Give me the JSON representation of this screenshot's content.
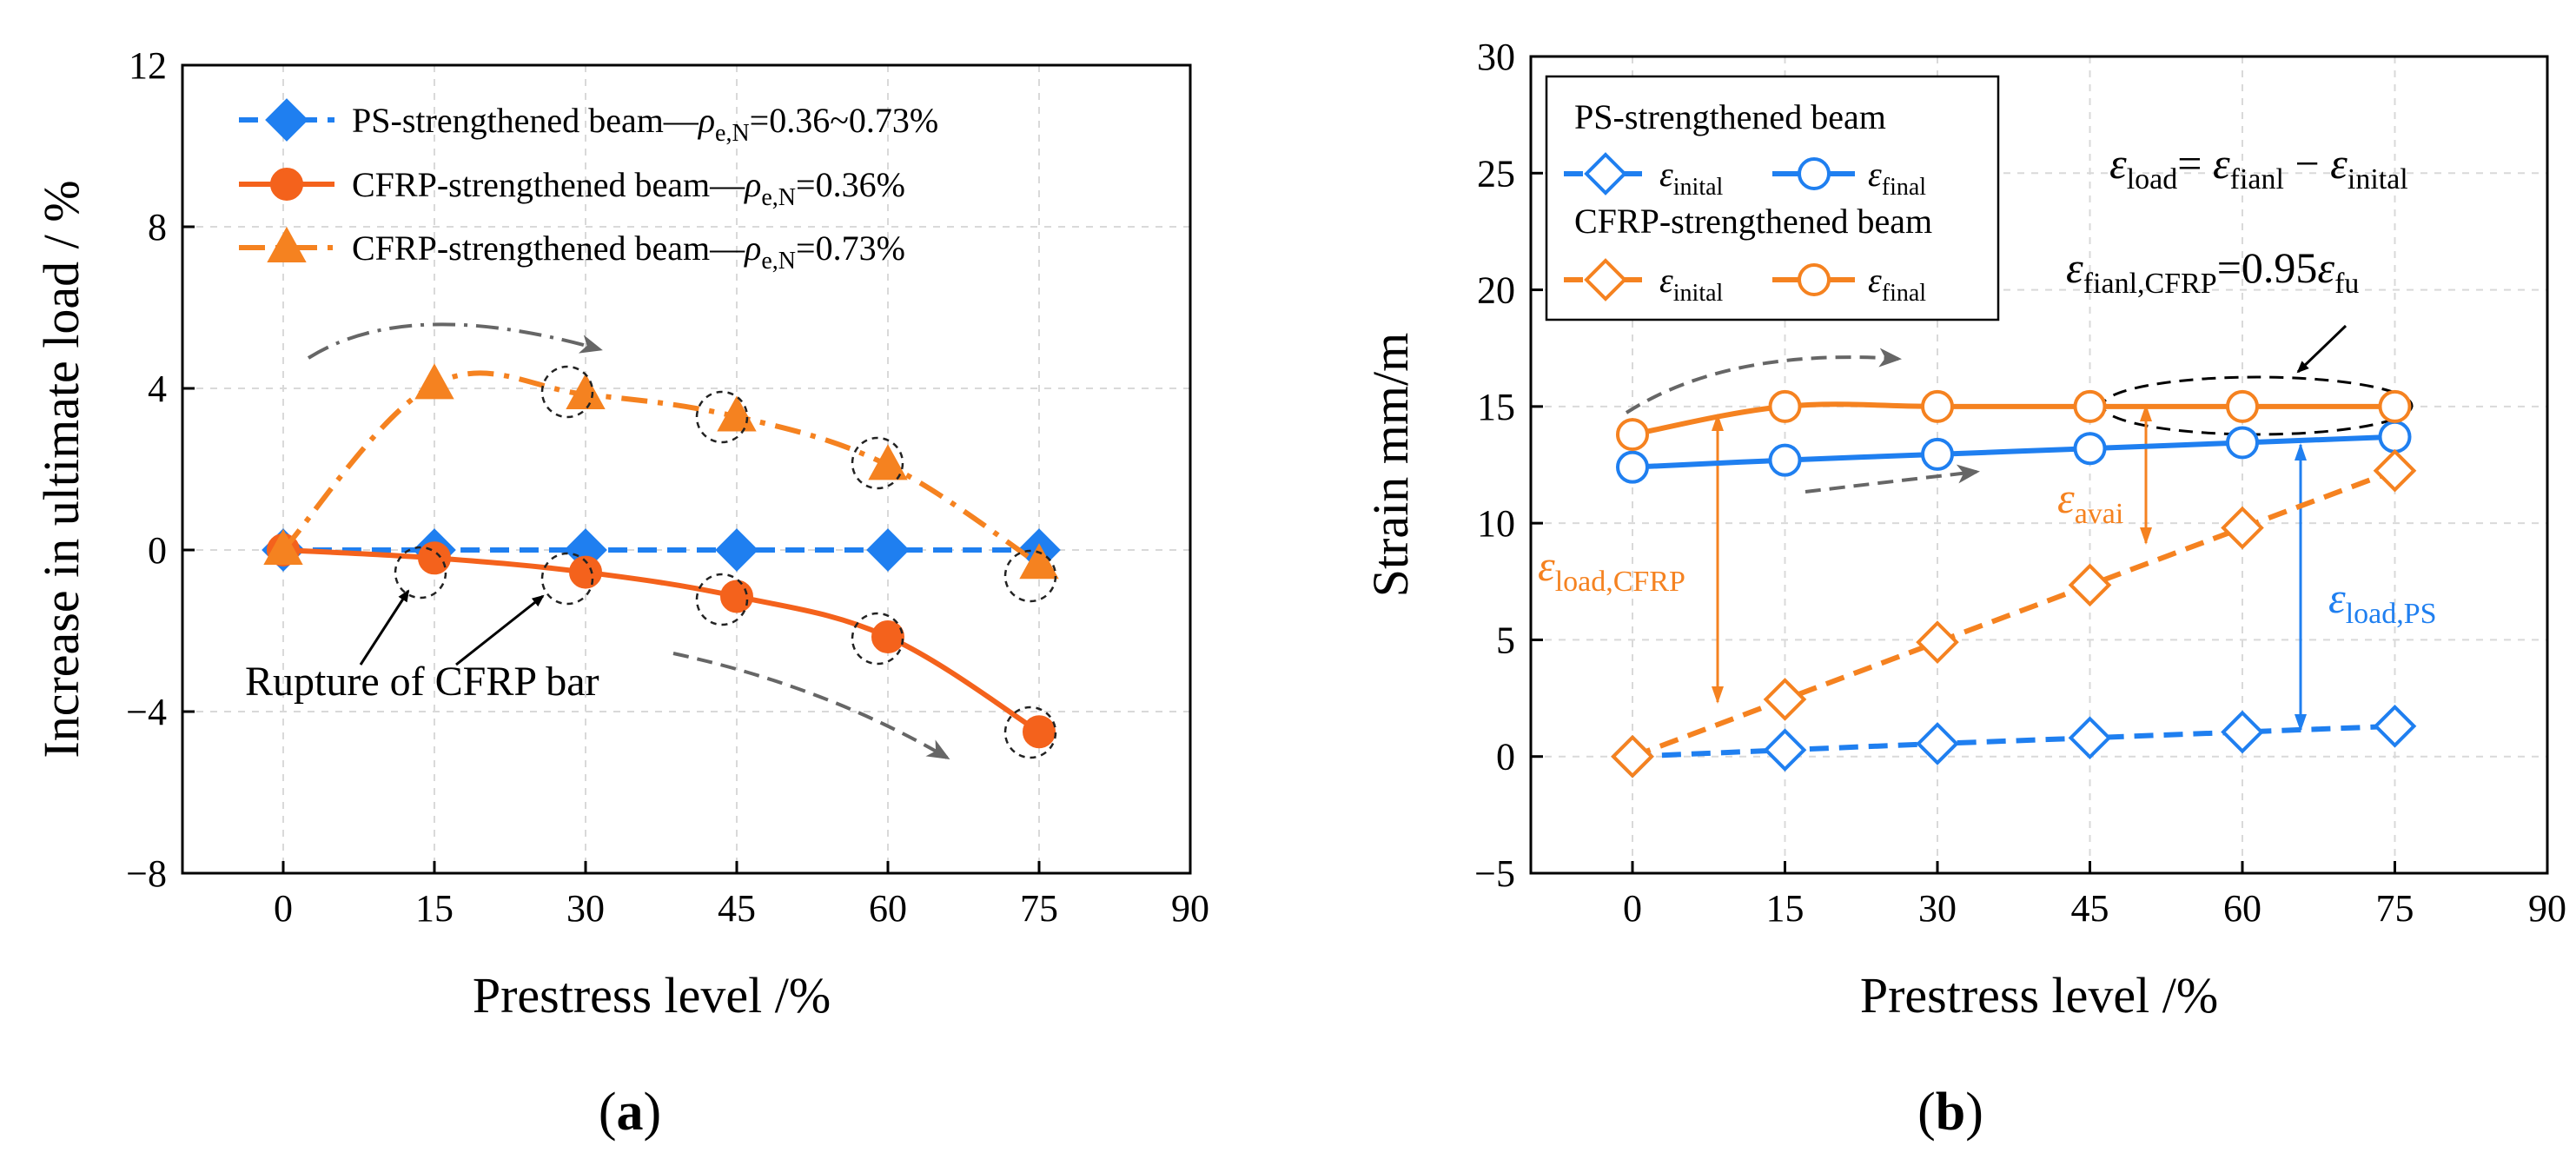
{
  "chart_data": [
    {
      "type": "line",
      "panel_label": "(a)",
      "panel_letter": "a",
      "xlabel": "Prestress level /%",
      "ylabel": "Increase in ultimate load / %",
      "xlim": [
        -10,
        90
      ],
      "ylim": [
        -8,
        12
      ],
      "xticks": [
        0,
        15,
        30,
        45,
        60,
        75,
        90
      ],
      "yticks": [
        -8,
        -4,
        0,
        4,
        8,
        12
      ],
      "x": [
        0,
        15,
        30,
        45,
        60,
        75
      ],
      "series": [
        {
          "name": "PS-strengthened beam—ρe,N=0.36~0.73%",
          "label_main": "PS-strengthened beam—",
          "label_rho": "ρ",
          "label_sub": "e,N",
          "label_tail": "=0.36~0.73%",
          "values": [
            0,
            0,
            0,
            0,
            0,
            0
          ],
          "color": "#1f7ff0",
          "marker": "diamond",
          "dash": "dashed"
        },
        {
          "name": "CFRP-strengthened beam—ρe,N=0.36%",
          "label_main": "CFRP-strengthened beam—",
          "label_rho": "ρ",
          "label_sub": "e,N",
          "label_tail": "=0.36%",
          "values": [
            0,
            -0.2,
            -0.55,
            -1.15,
            -2.15,
            -4.5
          ],
          "color": "#f4621c",
          "marker": "circle",
          "dash": "solid"
        },
        {
          "name": "CFRP-strengthened beam—ρe,N=0.73%",
          "label_main": "CFRP-strengthened beam—",
          "label_rho": "ρ",
          "label_sub": "e,N",
          "label_tail": "=0.73%",
          "values": [
            0,
            4.1,
            3.85,
            3.3,
            2.1,
            -0.35
          ],
          "color": "#f58220",
          "marker": "triangle",
          "dash": "dashdot"
        }
      ],
      "annotation": "Rupture of CFRP bar"
    },
    {
      "type": "line",
      "panel_label": "(b)",
      "panel_letter": "b",
      "xlabel": "Prestress level /%",
      "ylabel": "Strain  mm/m",
      "xlim": [
        -10,
        90
      ],
      "ylim": [
        -5,
        30
      ],
      "xticks": [
        0,
        15,
        30,
        45,
        60,
        75,
        90
      ],
      "yticks": [
        -5,
        0,
        5,
        10,
        15,
        20,
        25,
        30
      ],
      "x": [
        0,
        15,
        30,
        45,
        60,
        75
      ],
      "legend_groups": [
        "PS-strengthened beam",
        "CFRP-strengthened beam"
      ],
      "series": [
        {
          "name": "PS ε_inital",
          "symbol": "ε",
          "sub": "inital",
          "values": [
            0,
            0.28,
            0.55,
            0.8,
            1.05,
            1.3
          ],
          "color": "#1f7ff0",
          "marker": "open-diamond",
          "dash": "dashed"
        },
        {
          "name": "PS ε_final",
          "symbol": "ε",
          "sub": "final",
          "values": [
            12.4,
            12.7,
            12.95,
            13.2,
            13.45,
            13.7
          ],
          "color": "#1f7ff0",
          "marker": "open-circle",
          "dash": "solid"
        },
        {
          "name": "CFRP ε_inital",
          "symbol": "ε",
          "sub": "inital",
          "values": [
            0,
            2.45,
            4.9,
            7.35,
            9.8,
            12.25
          ],
          "color": "#f58220",
          "marker": "open-diamond",
          "dash": "dashed"
        },
        {
          "name": "CFRP ε_final",
          "symbol": "ε",
          "sub": "final",
          "values": [
            13.8,
            15.0,
            15.0,
            15.0,
            15.0,
            15.0
          ],
          "color": "#f58220",
          "marker": "open-circle",
          "dash": "solid"
        }
      ],
      "annotations": {
        "eq1": {
          "lhs_sym": "ε",
          "lhs_sub": "load",
          "eq": "=",
          "t1_sym": "ε",
          "t1_sub": "fianl",
          "minus": " − ",
          "t2_sym": "ε",
          "t2_sub": "inital"
        },
        "eq2": {
          "lhs_sym": "ε",
          "lhs_sub": "fianl,CFRP",
          "eq": "=0.95",
          "t1_sym": "ε",
          "t1_sub": "fu"
        },
        "load_cfrp": {
          "sym": "ε",
          "sub": "load,CFRP"
        },
        "avai": {
          "sym": "ε",
          "sub": "avai"
        },
        "load_ps": {
          "sym": "ε",
          "sub": "load,PS"
        }
      }
    }
  ]
}
